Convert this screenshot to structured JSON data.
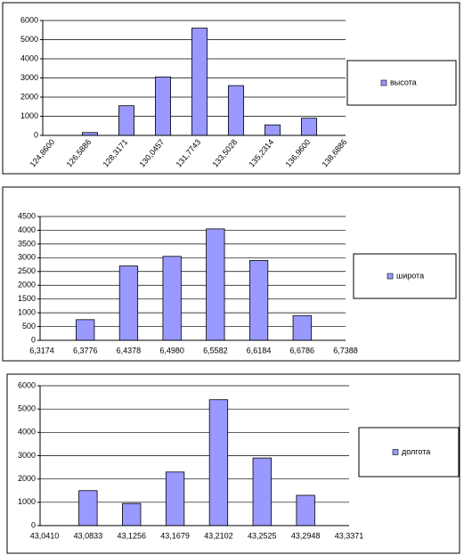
{
  "chart_data": [
    {
      "type": "bar",
      "categories": [
        "124,8600",
        "126,5886",
        "128,3171",
        "130,0457",
        "131,7743",
        "133,5028",
        "135,2314",
        "136,9600",
        "138,6886"
      ],
      "series": [
        {
          "name": "высота",
          "color": "#9999ff",
          "values": [
            0,
            150,
            1550,
            3050,
            5600,
            2600,
            550,
            900,
            0
          ]
        }
      ],
      "ylim": [
        0,
        6000
      ],
      "yticks": [
        0,
        1000,
        2000,
        3000,
        4000,
        5000,
        6000
      ],
      "grid": true,
      "legend": "right",
      "rotated_labels": true
    },
    {
      "type": "bar",
      "categories": [
        "6,3174",
        "6,3776",
        "6,4378",
        "6,4980",
        "6,5582",
        "6,6184",
        "6,6786",
        "6,7388"
      ],
      "series": [
        {
          "name": "широта",
          "color": "#9999ff",
          "values": [
            0,
            750,
            2700,
            3050,
            4050,
            2900,
            900,
            0
          ]
        }
      ],
      "ylim": [
        0,
        4500
      ],
      "yticks": [
        0,
        500,
        1000,
        1500,
        2000,
        2500,
        3000,
        3500,
        4000,
        4500
      ],
      "grid": true,
      "legend": "right",
      "rotated_labels": false
    },
    {
      "type": "bar",
      "categories": [
        "43,0410",
        "43,0833",
        "43,1256",
        "43,1679",
        "43,2102",
        "43,2525",
        "43,2948",
        "43,3371"
      ],
      "series": [
        {
          "name": "долгота",
          "color": "#9999ff",
          "values": [
            0,
            1500,
            950,
            2300,
            5400,
            2900,
            1300,
            0
          ]
        }
      ],
      "ylim": [
        0,
        6000
      ],
      "yticks": [
        0,
        1000,
        2000,
        3000,
        4000,
        5000,
        6000
      ],
      "grid": true,
      "legend": "right",
      "rotated_labels": false
    }
  ]
}
